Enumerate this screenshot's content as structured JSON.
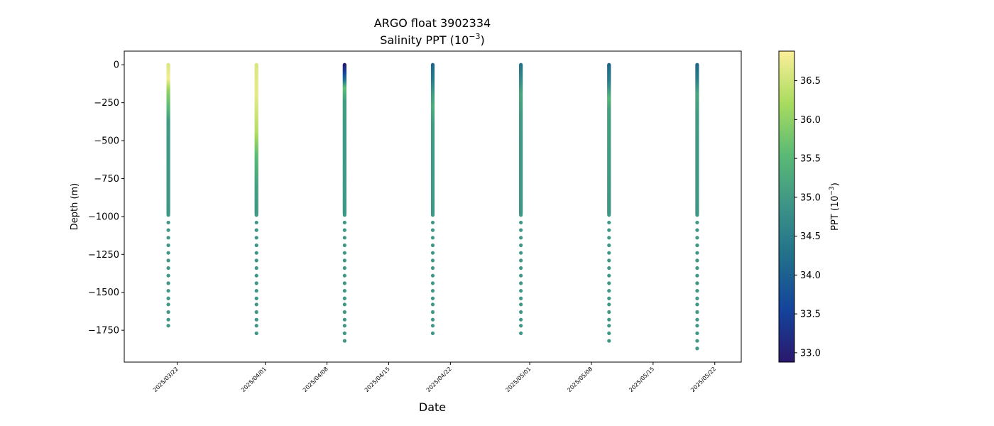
{
  "chart_data": {
    "type": "scatter",
    "title_line1": "ARGO float 3902334",
    "title_line2_prefix": "Salinity PPT (10",
    "title_line2_exp": "−3",
    "title_line2_suffix": ")",
    "xlabel": "Date",
    "ylabel": "Depth (m)",
    "colorbar_label_prefix": "PPT (10",
    "colorbar_label_exp": "−3",
    "colorbar_label_suffix": ")",
    "colormap": "haline",
    "colormap_stops": [
      "#2a186c",
      "#14439c",
      "#206e8b",
      "#3c9387",
      "#5aba75",
      "#a9dc5f",
      "#fdef9a"
    ],
    "colorbar_range": [
      32.88,
      36.88
    ],
    "colorbar_ticks": [
      33.0,
      33.5,
      34.0,
      34.5,
      35.0,
      35.5,
      36.0,
      36.5
    ],
    "ylim": [
      -1960,
      90
    ],
    "yticks": [
      0,
      -250,
      -500,
      -750,
      -1000,
      -1250,
      -1500,
      -1750
    ],
    "xlim": [
      "2025-03-16",
      "2025-05-25"
    ],
    "xticks": [
      "2025/03/22",
      "2025/04/01",
      "2025/04/08",
      "2025/04/15",
      "2025/04/22",
      "2025/05/01",
      "2025/05/08",
      "2025/05/15",
      "2025/05/22"
    ],
    "xtick_dates": [
      "2025-03-22",
      "2025-04-01",
      "2025-04-08",
      "2025-04-15",
      "2025-04-22",
      "2025-05-01",
      "2025-05-08",
      "2025-05-15",
      "2025-05-22"
    ],
    "profiles": [
      {
        "date": "2025-03-21",
        "max_depth": -1720,
        "salinity_profile": [
          [
            0,
            36.6
          ],
          [
            -100,
            36.8
          ],
          [
            -180,
            36.0
          ],
          [
            -300,
            35.5
          ],
          [
            -380,
            35.0
          ],
          [
            -1000,
            34.95
          ]
        ]
      },
      {
        "date": "2025-03-31",
        "max_depth": -1770,
        "salinity_profile": [
          [
            0,
            36.6
          ],
          [
            -200,
            36.7
          ],
          [
            -450,
            36.3
          ],
          [
            -600,
            35.6
          ],
          [
            -800,
            35.1
          ],
          [
            -1000,
            34.95
          ]
        ]
      },
      {
        "date": "2025-04-10",
        "max_depth": -1820,
        "salinity_profile": [
          [
            0,
            32.9
          ],
          [
            -50,
            33.4
          ],
          [
            -110,
            34.3
          ],
          [
            -160,
            35.6
          ],
          [
            -250,
            35.0
          ],
          [
            -1000,
            34.95
          ]
        ]
      },
      {
        "date": "2025-04-20",
        "max_depth": -1770,
        "salinity_profile": [
          [
            0,
            34.1
          ],
          [
            -100,
            34.4
          ],
          [
            -200,
            35.0
          ],
          [
            -280,
            35.3
          ],
          [
            -400,
            35.0
          ],
          [
            -1000,
            34.95
          ]
        ]
      },
      {
        "date": "2025-04-30",
        "max_depth": -1770,
        "salinity_profile": [
          [
            0,
            34.3
          ],
          [
            -100,
            34.7
          ],
          [
            -200,
            35.2
          ],
          [
            -350,
            35.0
          ],
          [
            -1000,
            34.95
          ]
        ]
      },
      {
        "date": "2025-05-10",
        "max_depth": -1820,
        "salinity_profile": [
          [
            0,
            34.1
          ],
          [
            -120,
            34.5
          ],
          [
            -230,
            35.5
          ],
          [
            -300,
            35.1
          ],
          [
            -1000,
            34.95
          ]
        ]
      },
      {
        "date": "2025-05-20",
        "max_depth": -1870,
        "salinity_profile": [
          [
            0,
            34.1
          ],
          [
            -100,
            34.5
          ],
          [
            -200,
            35.2
          ],
          [
            -350,
            35.0
          ],
          [
            -1000,
            34.95
          ]
        ]
      }
    ],
    "deep_samples": [
      -1040,
      -1090,
      -1140,
      -1190,
      -1240,
      -1290,
      -1340,
      -1390,
      -1440,
      -1490,
      -1540,
      -1580,
      -1630,
      -1680,
      -1720,
      -1770,
      -1820,
      -1870
    ],
    "grid": false,
    "legend": "none"
  }
}
